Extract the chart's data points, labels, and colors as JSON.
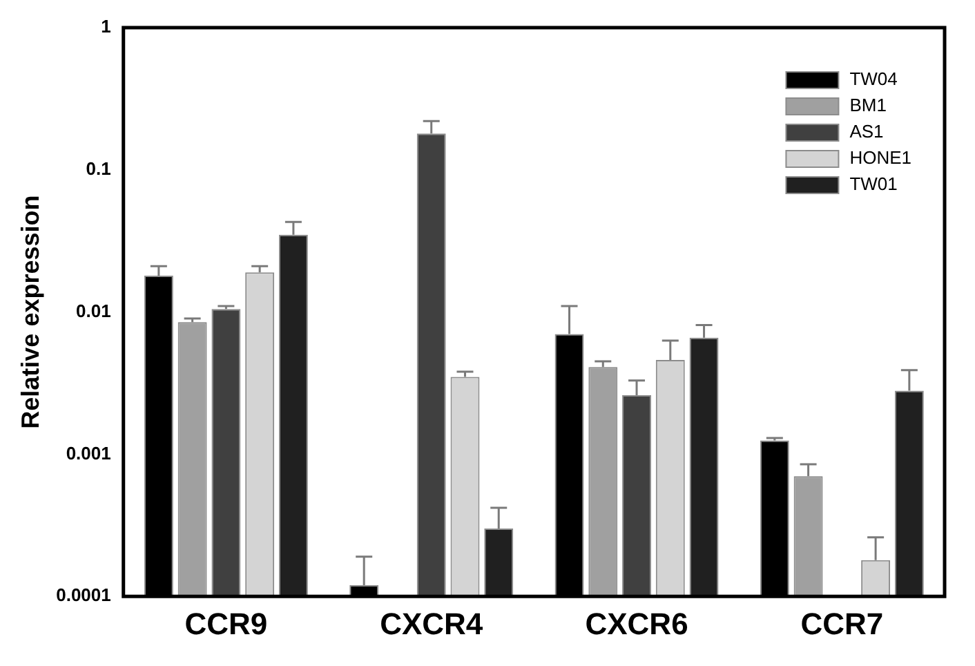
{
  "chart_data": {
    "type": "bar",
    "ylabel": "Relative expression",
    "categories": [
      "CCR9",
      "CXCR4",
      "CXCR6",
      "CCR7"
    ],
    "log": "y",
    "ylim": [
      0.0001,
      1
    ],
    "yticks": [
      0.0001,
      0.001,
      0.01,
      0.1,
      1
    ],
    "grid": false,
    "legend": "top right",
    "series": [
      {
        "name": "TW04",
        "color": "#000000",
        "values": [
          0.018,
          0.00012,
          0.007,
          0.00125
        ],
        "errors": [
          [
            0.018,
            0.021
          ],
          [
            0.00012,
            0.00019
          ],
          [
            0.007,
            0.011
          ],
          [
            0.00125,
            0.0013
          ]
        ]
      },
      {
        "name": "BM1",
        "color": "#a0a0a0",
        "values": [
          0.0085,
          null,
          0.0041,
          0.0007
        ],
        "errors": [
          [
            0.0085,
            0.009
          ],
          null,
          [
            0.0041,
            0.0045
          ],
          [
            0.0007,
            0.00085
          ]
        ]
      },
      {
        "name": "AS1",
        "color": "#404040",
        "values": [
          0.0105,
          0.18,
          0.0026,
          null
        ],
        "errors": [
          [
            0.0105,
            0.011
          ],
          [
            0.18,
            0.22
          ],
          [
            0.0026,
            0.0033
          ],
          null
        ]
      },
      {
        "name": "HONE1",
        "color": "#d4d4d4",
        "values": [
          0.019,
          0.0035,
          0.0046,
          0.00018
        ],
        "errors": [
          [
            0.019,
            0.021
          ],
          [
            0.0035,
            0.0038
          ],
          [
            0.0046,
            0.0063
          ],
          [
            0.00018,
            0.00026
          ]
        ]
      },
      {
        "name": "TW01",
        "color": "#202020",
        "values": [
          0.035,
          0.0003,
          0.0066,
          0.0028
        ],
        "errors": [
          [
            0.035,
            0.043
          ],
          [
            0.0003,
            0.00042
          ],
          [
            0.0066,
            0.0081
          ],
          [
            0.0028,
            0.0039
          ]
        ]
      }
    ]
  }
}
